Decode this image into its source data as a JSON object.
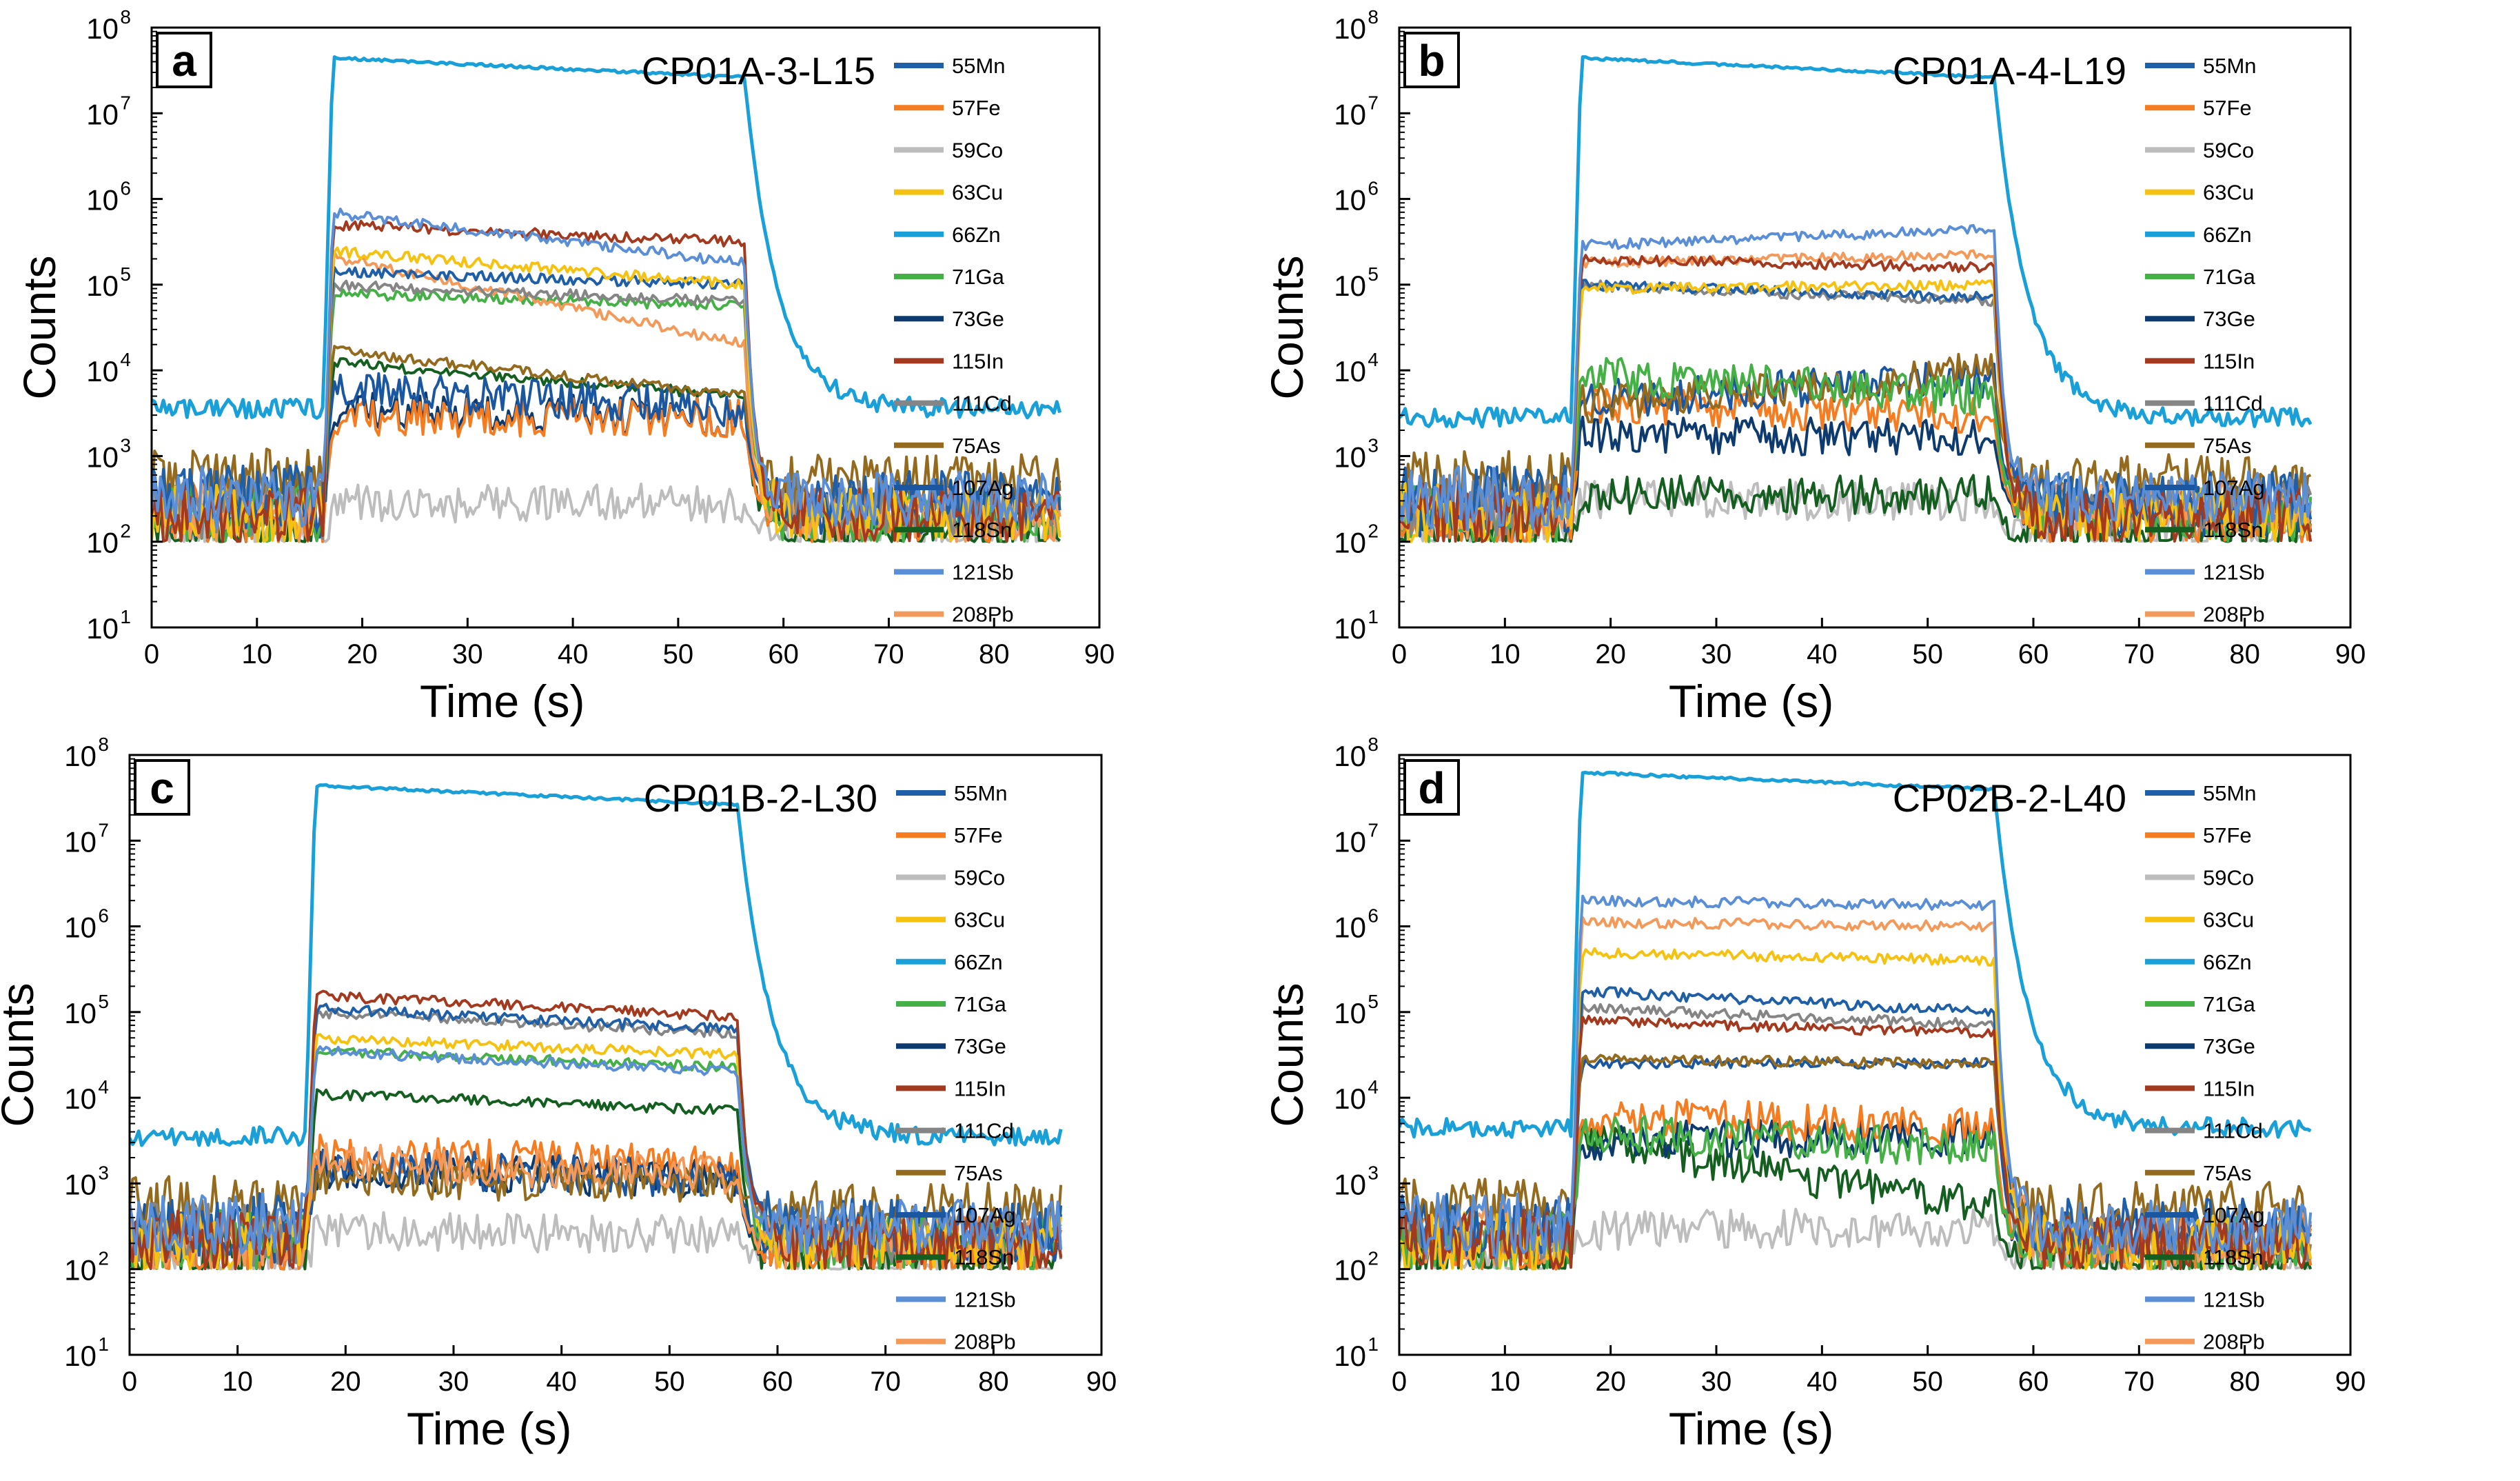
{
  "figure": {
    "axis": {
      "xlabel": "Time (s)",
      "ylabel": "Counts",
      "xlim": [
        0,
        90
      ],
      "ylim_log10": [
        1,
        8
      ],
      "xticks": [
        "0",
        "10",
        "20",
        "30",
        "40",
        "50",
        "60",
        "70",
        "80",
        "90"
      ],
      "yticks": [
        {
          "base": "10",
          "exp": "1"
        },
        {
          "base": "10",
          "exp": "2"
        },
        {
          "base": "10",
          "exp": "3"
        },
        {
          "base": "10",
          "exp": "4"
        },
        {
          "base": "10",
          "exp": "5"
        },
        {
          "base": "10",
          "exp": "6"
        },
        {
          "base": "10",
          "exp": "7"
        },
        {
          "base": "10",
          "exp": "8"
        }
      ]
    },
    "legend": [
      {
        "label": "55Mn",
        "color": "#1f5fa8"
      },
      {
        "label": "57Fe",
        "color": "#f57c20"
      },
      {
        "label": "59Co",
        "color": "#bdbdbd"
      },
      {
        "label": "63Cu",
        "color": "#f5c211"
      },
      {
        "label": "66Zn",
        "color": "#1aa0d8"
      },
      {
        "label": "71Ga",
        "color": "#45b045"
      },
      {
        "label": "73Ge",
        "color": "#0d3b70"
      },
      {
        "label": "115In",
        "color": "#a33a1f"
      },
      {
        "label": "111Cd",
        "color": "#858585"
      },
      {
        "label": "75As",
        "color": "#946b1e"
      },
      {
        "label": "107Ag",
        "color": "#1b56a0"
      },
      {
        "label": "118Sn",
        "color": "#145e1f"
      },
      {
        "label": "121Sb",
        "color": "#5a8ed6"
      },
      {
        "label": "208Pb",
        "color": "#f39a5a"
      }
    ]
  },
  "chart_data": [
    {
      "type": "line",
      "panel_letter": "a",
      "title": "CP01A-3-L15",
      "xlabel": "Time (s)",
      "ylabel": "Counts",
      "yscale": "log",
      "xlim": [
        0,
        90
      ],
      "ylim": [
        10,
        100000000
      ],
      "series": [
        {
          "name": "55Mn",
          "bg_log": 2.4,
          "start_log": 5.15,
          "end_log": 5.0
        },
        {
          "name": "57Fe",
          "bg_log": 2.2,
          "start_log": 3.45,
          "end_log": 3.45
        },
        {
          "name": "59Co",
          "bg_log": 2.0,
          "start_log": 2.45,
          "end_log": 2.45
        },
        {
          "name": "63Cu",
          "bg_log": 2.2,
          "start_log": 5.4,
          "end_log": 5.0
        },
        {
          "name": "66Zn",
          "bg_log": 3.55,
          "start_log": 7.65,
          "end_log": 7.42
        },
        {
          "name": "71Ga",
          "bg_log": 2.2,
          "start_log": 4.9,
          "end_log": 4.75
        },
        {
          "name": "73Ge",
          "bg_log": 2.2,
          "start_log": 3.55,
          "end_log": 3.45
        },
        {
          "name": "115In",
          "bg_log": 2.2,
          "start_log": 5.7,
          "end_log": 5.5
        },
        {
          "name": "111Cd",
          "bg_log": 2.3,
          "start_log": 5.0,
          "end_log": 4.8
        },
        {
          "name": "75As",
          "bg_log": 2.6,
          "start_log": 4.25,
          "end_log": 3.7
        },
        {
          "name": "107Ag",
          "bg_log": 2.3,
          "start_log": 3.8,
          "end_log": 3.55
        },
        {
          "name": "118Sn",
          "bg_log": 2.0,
          "start_log": 4.1,
          "end_log": 3.7
        },
        {
          "name": "121Sb",
          "bg_log": 2.4,
          "start_log": 5.85,
          "end_log": 5.25
        },
        {
          "name": "208Pb",
          "bg_log": 2.2,
          "start_log": 5.35,
          "end_log": 4.3
        }
      ]
    },
    {
      "type": "line",
      "panel_letter": "b",
      "title": "CP01A-4-L19",
      "xlabel": "Time (s)",
      "ylabel": "Counts",
      "yscale": "log",
      "xlim": [
        0,
        90
      ],
      "ylim": [
        10,
        100000000
      ],
      "series": [
        {
          "name": "55Mn",
          "bg_log": 2.4,
          "start_log": 5.0,
          "end_log": 4.85
        },
        {
          "name": "57Fe",
          "bg_log": 2.2,
          "start_log": 3.6,
          "end_log": 3.45
        },
        {
          "name": "59Co",
          "bg_log": 2.0,
          "start_log": 2.5,
          "end_log": 2.45
        },
        {
          "name": "63Cu",
          "bg_log": 2.2,
          "start_log": 4.95,
          "end_log": 5.0
        },
        {
          "name": "66Zn",
          "bg_log": 3.45,
          "start_log": 7.65,
          "end_log": 7.42
        },
        {
          "name": "71Ga",
          "bg_log": 2.2,
          "start_log": 3.95,
          "end_log": 3.7
        },
        {
          "name": "73Ge",
          "bg_log": 2.2,
          "start_log": 3.25,
          "end_log": 3.2
        },
        {
          "name": "115In",
          "bg_log": 2.2,
          "start_log": 5.3,
          "end_log": 5.2
        },
        {
          "name": "111Cd",
          "bg_log": 2.3,
          "start_log": 5.0,
          "end_log": 4.8
        },
        {
          "name": "75As",
          "bg_log": 2.6,
          "start_log": 3.6,
          "end_log": 4.0
        },
        {
          "name": "107Ag",
          "bg_log": 2.3,
          "start_log": 3.65,
          "end_log": 3.9
        },
        {
          "name": "118Sn",
          "bg_log": 2.0,
          "start_log": 2.55,
          "end_log": 2.55
        },
        {
          "name": "121Sb",
          "bg_log": 2.4,
          "start_log": 5.45,
          "end_log": 5.65
        },
        {
          "name": "208Pb",
          "bg_log": 2.3,
          "start_log": 5.25,
          "end_log": 5.35
        }
      ]
    },
    {
      "type": "line",
      "panel_letter": "c",
      "title": "CP01B-2-L30",
      "xlabel": "Time (s)",
      "ylabel": "Counts",
      "yscale": "log",
      "xlim": [
        0,
        90
      ],
      "ylim": [
        10,
        100000000
      ],
      "series": [
        {
          "name": "55Mn",
          "bg_log": 2.4,
          "start_log": 5.05,
          "end_log": 4.8
        },
        {
          "name": "57Fe",
          "bg_log": 2.2,
          "start_log": 3.35,
          "end_log": 3.2
        },
        {
          "name": "59Co",
          "bg_log": 2.0,
          "start_log": 2.45,
          "end_log": 2.4
        },
        {
          "name": "63Cu",
          "bg_log": 2.2,
          "start_log": 4.7,
          "end_log": 4.5
        },
        {
          "name": "66Zn",
          "bg_log": 3.55,
          "start_log": 7.65,
          "end_log": 7.42
        },
        {
          "name": "71Ga",
          "bg_log": 2.2,
          "start_log": 4.55,
          "end_log": 4.35
        },
        {
          "name": "73Ge",
          "bg_log": 2.2,
          "start_log": 3.15,
          "end_log": 3.05
        },
        {
          "name": "115In",
          "bg_log": 2.2,
          "start_log": 5.2,
          "end_log": 4.95
        },
        {
          "name": "111Cd",
          "bg_log": 2.3,
          "start_log": 5.0,
          "end_log": 4.75
        },
        {
          "name": "75As",
          "bg_log": 2.6,
          "start_log": 3.05,
          "end_log": 3.0
        },
        {
          "name": "107Ag",
          "bg_log": 2.3,
          "start_log": 3.2,
          "end_log": 3.05
        },
        {
          "name": "118Sn",
          "bg_log": 2.0,
          "start_log": 4.05,
          "end_log": 3.85
        },
        {
          "name": "121Sb",
          "bg_log": 2.4,
          "start_log": 4.55,
          "end_log": 4.3
        },
        {
          "name": "208Pb",
          "bg_log": 2.2,
          "start_log": 3.25,
          "end_log": 3.1
        }
      ]
    },
    {
      "type": "line",
      "panel_letter": "d",
      "title": "CP02B-2-L40",
      "xlabel": "Time (s)",
      "ylabel": "Counts",
      "yscale": "log",
      "xlim": [
        0,
        90
      ],
      "ylim": [
        10,
        100000000
      ],
      "series": [
        {
          "name": "55Mn",
          "bg_log": 2.4,
          "start_log": 5.25,
          "end_log": 5.0
        },
        {
          "name": "57Fe",
          "bg_log": 2.2,
          "start_log": 3.8,
          "end_log": 3.65
        },
        {
          "name": "59Co",
          "bg_log": 2.0,
          "start_log": 2.45,
          "end_log": 2.5
        },
        {
          "name": "63Cu",
          "bg_log": 2.2,
          "start_log": 5.7,
          "end_log": 5.6
        },
        {
          "name": "66Zn",
          "bg_log": 3.65,
          "start_log": 7.8,
          "end_log": 7.6
        },
        {
          "name": "71Ga",
          "bg_log": 2.2,
          "start_log": 3.6,
          "end_log": 3.4
        },
        {
          "name": "73Ge",
          "bg_log": 2.2,
          "start_log": 3.5,
          "end_log": 3.55
        },
        {
          "name": "115In",
          "bg_log": 2.2,
          "start_log": 4.9,
          "end_log": 4.75
        },
        {
          "name": "111Cd",
          "bg_log": 2.3,
          "start_log": 5.05,
          "end_log": 4.85
        },
        {
          "name": "75As",
          "bg_log": 2.6,
          "start_log": 4.45,
          "end_log": 4.4
        },
        {
          "name": "107Ag",
          "bg_log": 2.3,
          "start_log": 4.4,
          "end_log": 4.4
        },
        {
          "name": "118Sn",
          "bg_log": 2.0,
          "start_log": 3.55,
          "end_log": 2.7
        },
        {
          "name": "121Sb",
          "bg_log": 2.4,
          "start_log": 6.3,
          "end_log": 6.25
        },
        {
          "name": "208Pb",
          "bg_log": 2.3,
          "start_log": 6.05,
          "end_log": 6.0
        }
      ]
    }
  ]
}
